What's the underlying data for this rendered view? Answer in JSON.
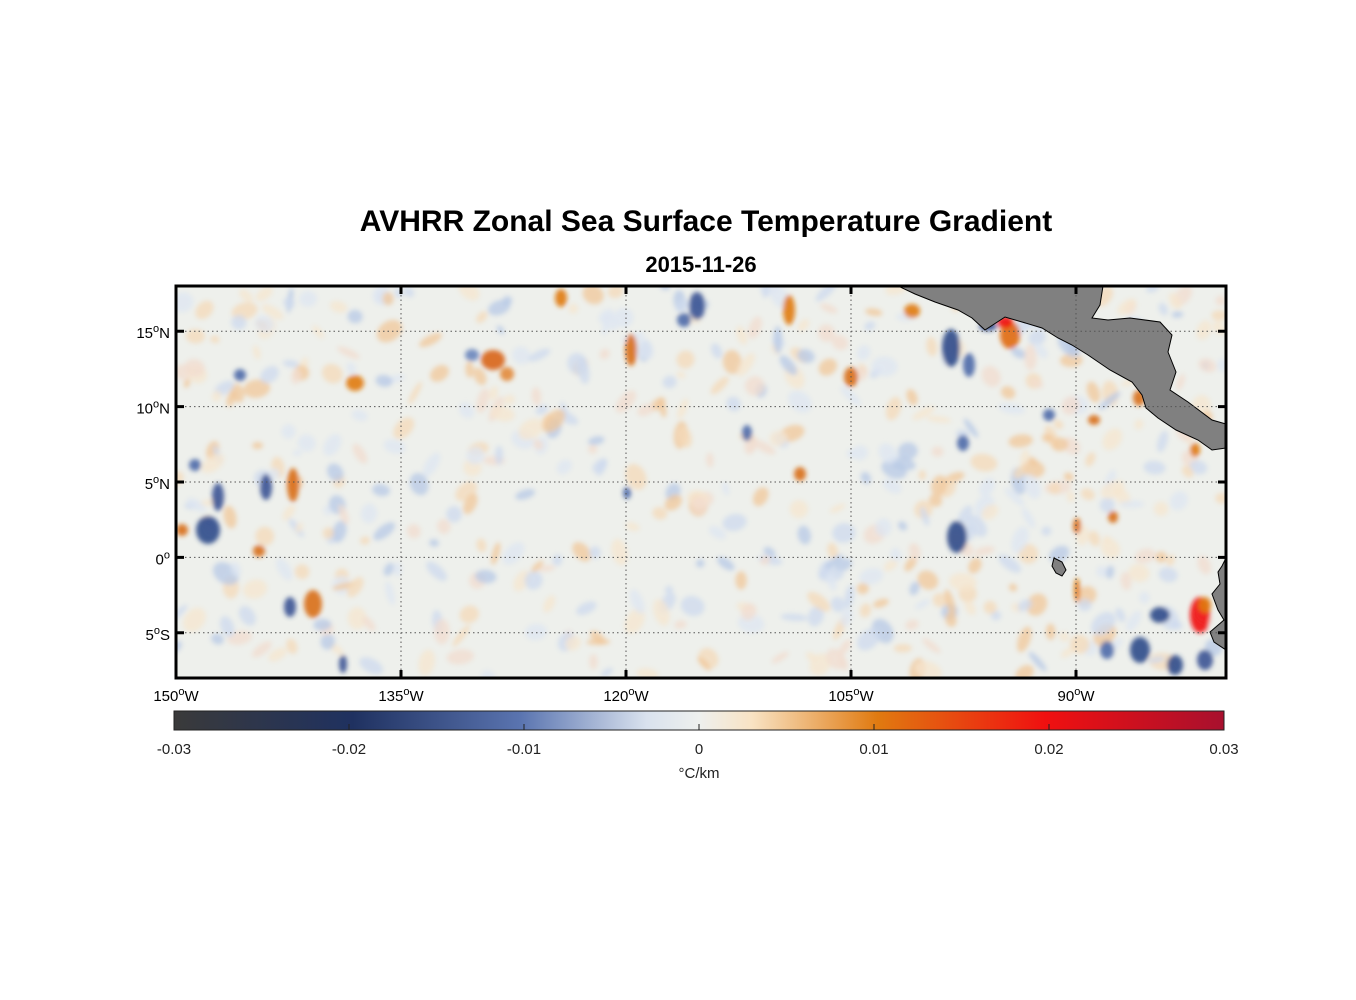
{
  "title": "AVHRR Zonal Sea Surface Temperature Gradient",
  "subtitle": "2015-11-26",
  "map": {
    "lon_range": [
      -150,
      -80
    ],
    "lat_range": [
      -8,
      18
    ],
    "lat_ticks": [
      {
        "value": 15,
        "num": "15",
        "hemi": "N"
      },
      {
        "value": 10,
        "num": "10",
        "hemi": "N"
      },
      {
        "value": 5,
        "num": "5",
        "hemi": "N"
      },
      {
        "value": 0,
        "num": "0",
        "hemi": ""
      },
      {
        "value": -5,
        "num": "5",
        "hemi": "S"
      }
    ],
    "lon_ticks": [
      {
        "value": -150,
        "num": "150",
        "hemi": "W"
      },
      {
        "value": -135,
        "num": "135",
        "hemi": "W"
      },
      {
        "value": -120,
        "num": "120",
        "hemi": "W"
      },
      {
        "value": -105,
        "num": "105",
        "hemi": "W"
      },
      {
        "value": -90,
        "num": "90",
        "hemi": "W"
      }
    ],
    "grid": true,
    "land_color": "#808080"
  },
  "colorbar": {
    "min": -0.03,
    "max": 0.03,
    "ticks": [
      "-0.03",
      "-0.02",
      "-0.01",
      "0",
      "0.01",
      "0.02",
      "0.03"
    ],
    "tick_values": [
      -0.03,
      -0.02,
      -0.01,
      0,
      0.01,
      0.02,
      0.03
    ],
    "label": "°C/km",
    "colors": [
      "#3a3a3a",
      "#1f3160",
      "#5a74b0",
      "#e8ecf0",
      "#f3d7b0",
      "#e07a10",
      "#f01010",
      "#a8102e"
    ]
  }
}
